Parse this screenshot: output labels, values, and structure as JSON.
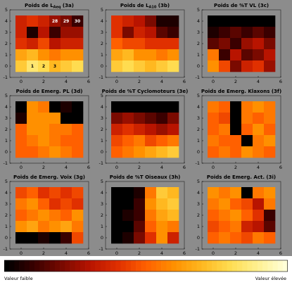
{
  "colors": {
    "figure_bg": "#8c8c8c",
    "colormap": [
      "#000000",
      "#3a0000",
      "#7a0a00",
      "#b81400",
      "#e03000",
      "#ff6000",
      "#ff9000",
      "#ffb820",
      "#ffdc50",
      "#fff090",
      "#ffffd8"
    ]
  },
  "chart_data": [
    {
      "type": "heatmap",
      "panel": "3a",
      "title": "Poids de L_Aeq (3a)",
      "title_main": "Poids de L",
      "title_sub": "Aeq",
      "title_tail": " (3a)",
      "x": [
        0,
        1,
        2,
        3,
        4,
        5
      ],
      "y": [
        4,
        3,
        2,
        1,
        0
      ],
      "values": [
        [
          0.35,
          0.4,
          0.35,
          0.25,
          0.2,
          0.1
        ],
        [
          0.35,
          0.05,
          0.3,
          0.1,
          0.25,
          0.25
        ],
        [
          0.4,
          0.35,
          0.45,
          0.3,
          0.35,
          0.35
        ],
        [
          0.65,
          0.7,
          0.6,
          0.55,
          0.6,
          0.6
        ],
        [
          0.75,
          0.85,
          0.8,
          0.7,
          0.75,
          0.8
        ]
      ],
      "cell_labels": [
        {
          "text": "28",
          "row": 0,
          "col": 3,
          "light": true
        },
        {
          "text": "29",
          "row": 0,
          "col": 4,
          "light": true
        },
        {
          "text": "30",
          "row": 0,
          "col": 5,
          "light": true
        },
        {
          "text": "1",
          "row": 4,
          "col": 1,
          "light": false
        },
        {
          "text": "2",
          "row": 4,
          "col": 2,
          "light": false
        },
        {
          "text": "3",
          "row": 4,
          "col": 3,
          "light": false
        }
      ],
      "xticks": [
        "0",
        "2",
        "4",
        "6"
      ],
      "yticks": [
        "5",
        "4",
        "3",
        "2",
        "1",
        "0",
        "-1"
      ]
    },
    {
      "type": "heatmap",
      "panel": "3b",
      "title": "Poids de L_A10 (3b)",
      "title_main": "Poids de L",
      "title_sub": "A10",
      "title_tail": " (3b)",
      "x": [
        0,
        1,
        2,
        3,
        4,
        5
      ],
      "y": [
        4,
        3,
        2,
        1,
        0
      ],
      "values": [
        [
          0.4,
          0.35,
          0.3,
          0.2,
          0.05,
          0.05
        ],
        [
          0.4,
          0.2,
          0.35,
          0.3,
          0.15,
          0.1
        ],
        [
          0.5,
          0.45,
          0.45,
          0.4,
          0.4,
          0.4
        ],
        [
          0.65,
          0.7,
          0.6,
          0.6,
          0.55,
          0.6
        ],
        [
          0.75,
          0.8,
          0.75,
          0.7,
          0.75,
          0.8
        ]
      ],
      "xticks": [
        "0",
        "2",
        "4",
        "6"
      ],
      "yticks": [
        "5",
        "4",
        "3",
        "2",
        "1",
        "0",
        "-1"
      ]
    },
    {
      "type": "heatmap",
      "panel": "3c",
      "title": "Poids de %T VL (3c)",
      "x": [
        0,
        1,
        2,
        3,
        4,
        5
      ],
      "y": [
        4,
        3,
        2,
        1,
        0
      ],
      "values": [
        [
          0.0,
          0.0,
          0.0,
          0.0,
          0.0,
          0.0
        ],
        [
          0.05,
          0.1,
          0.15,
          0.1,
          0.15,
          0.1
        ],
        [
          0.15,
          0.2,
          0.1,
          0.25,
          0.3,
          0.2
        ],
        [
          0.55,
          0.1,
          0.3,
          0.15,
          0.2,
          0.3
        ],
        [
          0.6,
          0.45,
          0.2,
          0.35,
          0.4,
          0.25
        ]
      ],
      "xticks": [
        "0",
        "2",
        "4",
        "6"
      ],
      "yticks": [
        "5",
        "4",
        "3",
        "2",
        "1",
        "0",
        "-1"
      ]
    },
    {
      "type": "heatmap",
      "panel": "3d",
      "title": "Poids de Emerg. PL (3d)",
      "x": [
        0,
        1,
        2,
        3,
        4,
        5
      ],
      "y": [
        4,
        3,
        2,
        1,
        0
      ],
      "values": [
        [
          0.0,
          0.6,
          0.55,
          0.0,
          0.05,
          0.0
        ],
        [
          0.05,
          0.6,
          0.6,
          0.6,
          0.0,
          0.0
        ],
        [
          0.5,
          0.6,
          0.6,
          0.55,
          0.55,
          0.5
        ],
        [
          0.5,
          0.55,
          0.6,
          0.55,
          0.5,
          0.5
        ],
        [
          0.5,
          0.5,
          0.55,
          0.6,
          0.55,
          0.5
        ]
      ],
      "xticks": [
        "0",
        "2",
        "4",
        "6"
      ],
      "yticks": [
        "5",
        "4",
        "3",
        "2",
        "1",
        "0",
        "-1"
      ]
    },
    {
      "type": "heatmap",
      "panel": "3e",
      "title": "Poids de %T Cyclomoteurs (3e)",
      "x": [
        0,
        1,
        2,
        3,
        4,
        5
      ],
      "y": [
        4,
        3,
        2,
        1,
        0
      ],
      "values": [
        [
          0.0,
          0.0,
          0.0,
          0.0,
          0.0,
          0.0
        ],
        [
          0.2,
          0.25,
          0.2,
          0.15,
          0.1,
          0.2
        ],
        [
          0.35,
          0.4,
          0.35,
          0.3,
          0.25,
          0.3
        ],
        [
          0.45,
          0.5,
          0.55,
          0.45,
          0.5,
          0.55
        ],
        [
          0.5,
          0.55,
          0.6,
          0.65,
          0.7,
          0.75
        ]
      ],
      "xticks": [
        "0",
        "2",
        "4",
        "6"
      ],
      "yticks": [
        "5",
        "4",
        "3",
        "2",
        "1",
        "0",
        "-1"
      ]
    },
    {
      "type": "heatmap",
      "panel": "3f",
      "title": "Poids de Emerg. Klaxons (3f)",
      "x": [
        0,
        1,
        2,
        3,
        4,
        5
      ],
      "y": [
        4,
        3,
        2,
        1,
        0
      ],
      "values": [
        [
          0.55,
          0.5,
          0.0,
          0.55,
          0.6,
          0.55
        ],
        [
          0.5,
          0.45,
          0.0,
          0.55,
          0.5,
          0.55
        ],
        [
          0.5,
          0.55,
          0.0,
          0.5,
          0.6,
          0.5
        ],
        [
          0.55,
          0.5,
          0.5,
          0.0,
          0.55,
          0.6
        ],
        [
          0.5,
          0.55,
          0.5,
          0.6,
          0.55,
          0.5
        ]
      ],
      "xticks": [
        "0",
        "2",
        "4",
        "6"
      ],
      "yticks": [
        "5",
        "4",
        "3",
        "2",
        "1",
        "0",
        "-1"
      ]
    },
    {
      "type": "heatmap",
      "panel": "3g",
      "title": "Poids de Emerg. Voix (3g)",
      "x": [
        0,
        1,
        2,
        3,
        4,
        5
      ],
      "y": [
        4,
        3,
        2,
        1,
        0
      ],
      "values": [
        [
          0.45,
          0.5,
          0.4,
          0.45,
          0.4,
          0.45
        ],
        [
          0.55,
          0.6,
          0.5,
          0.4,
          0.45,
          0.4
        ],
        [
          0.5,
          0.55,
          0.6,
          0.55,
          0.5,
          0.6
        ],
        [
          0.6,
          0.65,
          0.55,
          0.6,
          0.65,
          0.55
        ],
        [
          0.0,
          0.0,
          0.05,
          0.0,
          0.1,
          0.45
        ]
      ],
      "xticks": [
        "0",
        "2",
        "4",
        "6"
      ],
      "yticks": [
        "5",
        "4",
        "3",
        "2",
        "1",
        "0",
        "-1"
      ]
    },
    {
      "type": "heatmap",
      "panel": "3h",
      "title": "Poids de %T Oiseaux (3h)",
      "x": [
        0,
        1,
        2,
        3,
        4,
        5
      ],
      "y": [
        4,
        3,
        2,
        1,
        0
      ],
      "values": [
        [
          0.0,
          0.0,
          0.05,
          0.55,
          0.75,
          0.7
        ],
        [
          0.0,
          0.0,
          0.1,
          0.6,
          0.7,
          0.75
        ],
        [
          0.0,
          0.05,
          0.1,
          0.55,
          0.65,
          0.7
        ],
        [
          0.0,
          0.0,
          0.15,
          0.5,
          0.6,
          0.55
        ],
        [
          0.0,
          0.05,
          0.2,
          0.4,
          0.6,
          0.35
        ]
      ],
      "xticks": [
        "0",
        "2",
        "4",
        "6"
      ],
      "yticks": [
        "5",
        "4",
        "3",
        "2",
        "1",
        "0",
        "-1"
      ]
    },
    {
      "type": "heatmap",
      "panel": "3i",
      "title": "Poids de Emerg. Act. (3i)",
      "x": [
        0,
        1,
        2,
        3,
        4,
        5
      ],
      "y": [
        4,
        3,
        2,
        1,
        0
      ],
      "values": [
        [
          0.6,
          0.55,
          0.6,
          0.0,
          0.55,
          0.6
        ],
        [
          0.55,
          0.6,
          0.5,
          0.45,
          0.3,
          0.55
        ],
        [
          0.5,
          0.55,
          0.6,
          0.5,
          0.4,
          0.1
        ],
        [
          0.45,
          0.5,
          0.55,
          0.35,
          0.3,
          0.15
        ],
        [
          0.5,
          0.55,
          0.5,
          0.45,
          0.55,
          0.5
        ]
      ],
      "xticks": [
        "0",
        "2",
        "4",
        "6"
      ],
      "yticks": [
        "5",
        "4",
        "3",
        "2",
        "1",
        "0",
        "-1"
      ]
    }
  ],
  "colorbar": {
    "steps": 56,
    "low_label": "Valeur faible",
    "high_label": "Valeur élevée"
  }
}
